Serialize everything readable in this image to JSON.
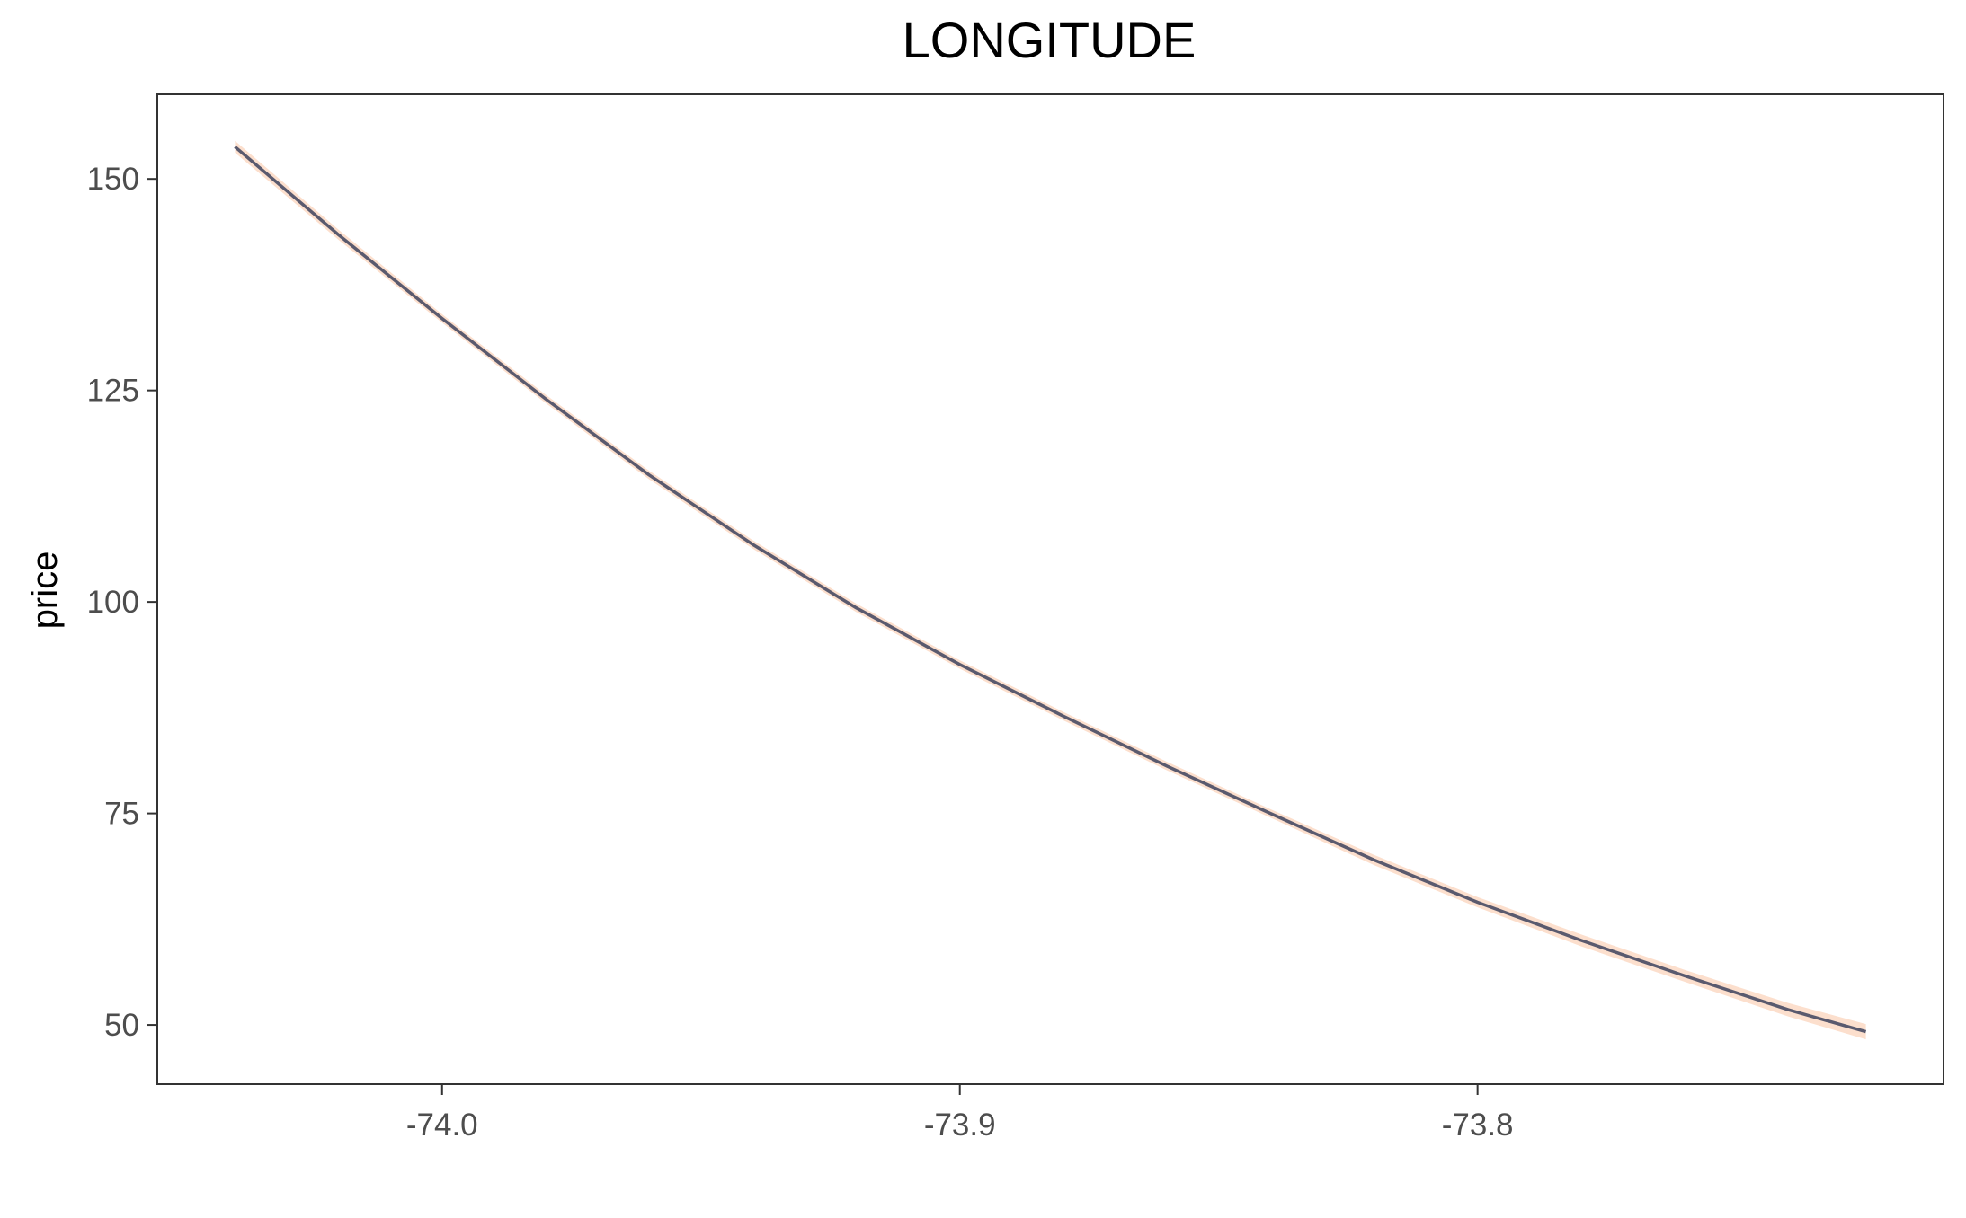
{
  "chart_data": {
    "type": "line",
    "title": "LONGITUDE",
    "xlabel": "",
    "ylabel": "price",
    "xlim": [
      -74.055,
      -73.71
    ],
    "ylim": [
      43,
      160
    ],
    "xticks": [
      -74.0,
      -73.9,
      -73.8
    ],
    "xtick_labels": [
      "-74.0",
      "-73.9",
      "-73.8"
    ],
    "yticks": [
      50,
      75,
      100,
      125,
      150
    ],
    "ytick_labels": [
      "50",
      "75",
      "100",
      "125",
      "150"
    ],
    "grid": false,
    "series": [
      {
        "color": "#5a5a6e",
        "band_color": "#fcd9c4",
        "x": [
          -74.04,
          -74.02,
          -74.0,
          -73.98,
          -73.96,
          -73.94,
          -73.92,
          -73.9,
          -73.88,
          -73.86,
          -73.84,
          -73.82,
          -73.8,
          -73.78,
          -73.76,
          -73.74,
          -73.725
        ],
        "y": [
          153.8,
          143.4,
          133.5,
          124.0,
          115.0,
          106.8,
          99.3,
          92.6,
          86.5,
          80.6,
          75.0,
          69.5,
          64.5,
          60.0,
          55.8,
          51.8,
          49.2
        ],
        "lower": [
          153.1,
          142.8,
          133.0,
          123.5,
          114.5,
          106.3,
          98.8,
          92.1,
          86.0,
          80.1,
          74.5,
          68.9,
          63.9,
          59.3,
          55.1,
          51.0,
          48.3
        ],
        "upper": [
          154.5,
          144.0,
          134.0,
          124.5,
          115.5,
          107.3,
          99.8,
          93.1,
          87.0,
          81.1,
          75.5,
          70.1,
          65.1,
          60.7,
          56.5,
          52.6,
          50.1
        ]
      }
    ]
  }
}
